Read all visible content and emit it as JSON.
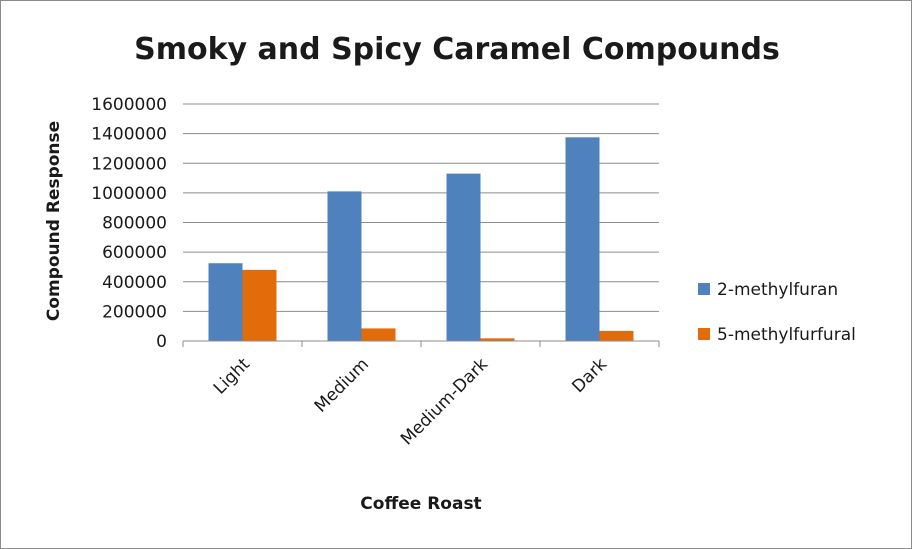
{
  "chart_data": {
    "type": "bar",
    "title": "Smoky and Spicy Caramel Compounds",
    "xlabel": "Coffee Roast",
    "ylabel": "Compound Response",
    "categories": [
      "Light",
      "Medium",
      "Medium-Dark",
      "Dark"
    ],
    "series": [
      {
        "name": "2-methylfuran",
        "color": "#4f81bd",
        "values": [
          525000,
          1010000,
          1130000,
          1375000
        ]
      },
      {
        "name": "5-methylfurfural",
        "color": "#e36c0a",
        "values": [
          480000,
          85000,
          18000,
          68000
        ]
      }
    ],
    "ylim": [
      0,
      1600000
    ],
    "yticks": [
      0,
      200000,
      400000,
      600000,
      800000,
      1000000,
      1200000,
      1400000,
      1600000
    ],
    "grid": true,
    "legend_position": "right"
  }
}
